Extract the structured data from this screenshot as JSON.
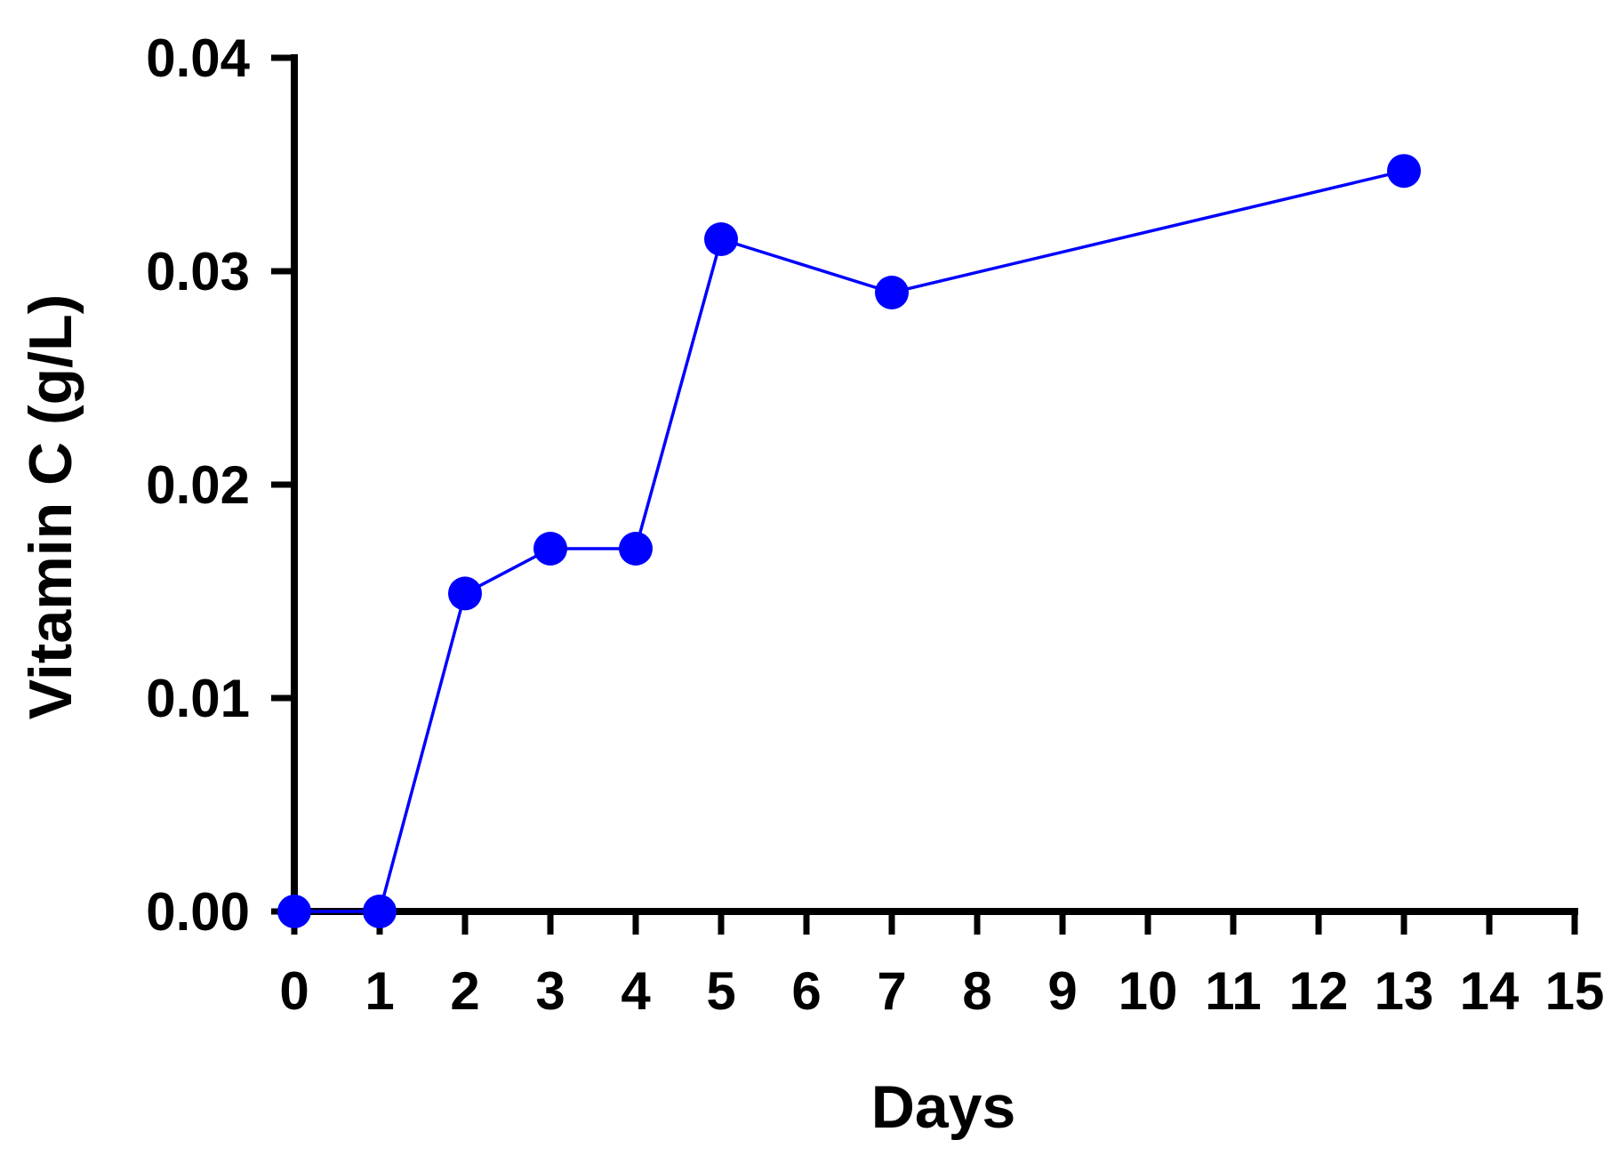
{
  "chart_data": {
    "type": "line",
    "title": "",
    "xlabel": "Days",
    "ylabel": "Vitamin C (g/L)",
    "xlim": [
      0,
      15
    ],
    "ylim": [
      0,
      0.04
    ],
    "x_ticks": [
      "0",
      "1",
      "2",
      "3",
      "4",
      "5",
      "6",
      "7",
      "8",
      "9",
      "10",
      "11",
      "12",
      "13",
      "14",
      "15"
    ],
    "y_ticks": [
      "0.00",
      "0.01",
      "0.02",
      "0.03",
      "0.04"
    ],
    "grid": false,
    "legend": "none",
    "series": [
      {
        "color": "#0000ff",
        "marker": "circle",
        "points": [
          {
            "x": 0,
            "y": 0.0
          },
          {
            "x": 1,
            "y": 0.0
          },
          {
            "x": 2,
            "y": 0.0149
          },
          {
            "x": 3,
            "y": 0.017
          },
          {
            "x": 4,
            "y": 0.017
          },
          {
            "x": 5,
            "y": 0.0315
          },
          {
            "x": 7,
            "y": 0.029
          },
          {
            "x": 13,
            "y": 0.0347
          }
        ]
      }
    ],
    "axis_color": "#000000"
  }
}
